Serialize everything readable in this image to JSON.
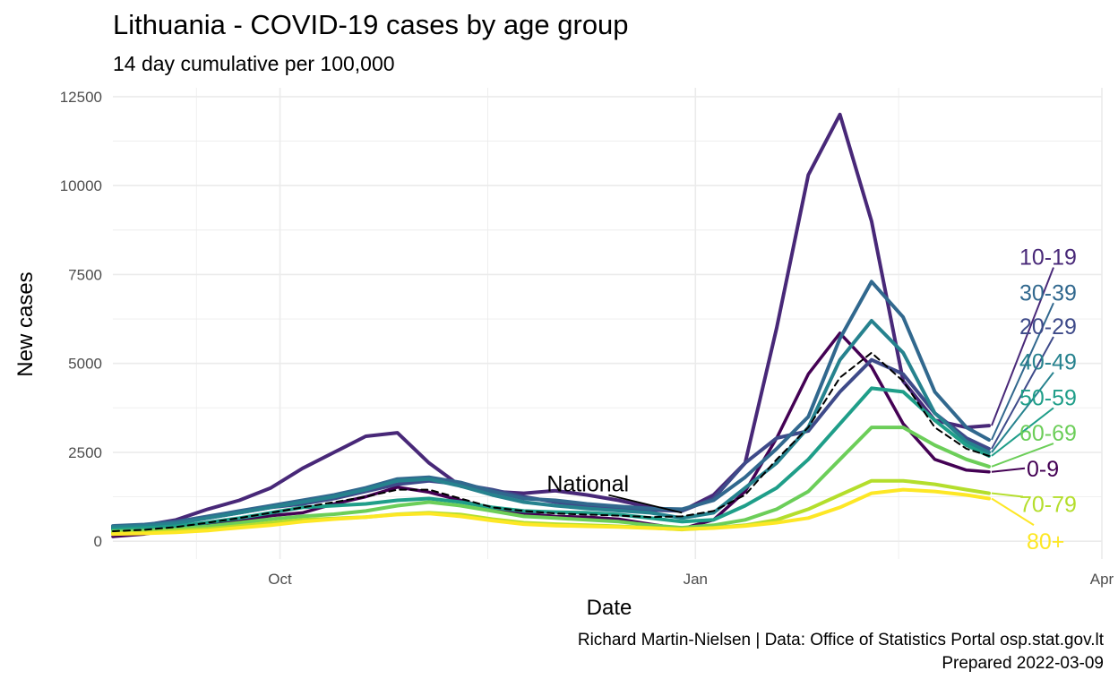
{
  "chart_data": {
    "type": "line",
    "title": "Lithuania - COVID-19 cases by age group",
    "subtitle": "14 day cumulative per 100,000",
    "xlabel": "Date",
    "ylabel": "New cases",
    "caption": [
      "Richard Martin-Nielsen | Data: Office of Statistics Portal osp.stat.gov.lt",
      "Prepared 2022-03-09"
    ],
    "x_ticks": [
      {
        "label": "Oct",
        "date": "2021-10-01"
      },
      {
        "label": "Jan",
        "date": "2022-01-01"
      },
      {
        "label": "Apr",
        "date": "2022-04-01"
      }
    ],
    "x_range": [
      "2021-08-25",
      "2022-04-01"
    ],
    "y_ticks": [
      0,
      2500,
      5000,
      7500,
      10000,
      12500
    ],
    "ylim": [
      -500,
      12750
    ],
    "grid": true,
    "legend": "direct labels at line ends",
    "x": [
      "2021-08-25",
      "2021-09-01",
      "2021-09-08",
      "2021-09-15",
      "2021-09-22",
      "2021-09-29",
      "2021-10-06",
      "2021-10-13",
      "2021-10-20",
      "2021-10-27",
      "2021-11-03",
      "2021-11-10",
      "2021-11-17",
      "2021-11-24",
      "2021-12-01",
      "2021-12-08",
      "2021-12-15",
      "2021-12-22",
      "2021-12-29",
      "2022-01-05",
      "2022-01-12",
      "2022-01-19",
      "2022-01-26",
      "2022-02-02",
      "2022-02-09",
      "2022-02-16",
      "2022-02-23",
      "2022-03-02",
      "2022-03-07"
    ],
    "series": [
      {
        "name": "0-9",
        "color": "#440154",
        "width": 3.5,
        "values": [
          130,
          200,
          330,
          450,
          560,
          720,
          800,
          1050,
          1250,
          1520,
          1380,
          1150,
          900,
          780,
          700,
          680,
          620,
          480,
          350,
          600,
          1400,
          2900,
          4700,
          5850,
          4900,
          3300,
          2300,
          2000,
          1950
        ]
      },
      {
        "name": "10-19",
        "color": "#482878",
        "width": 4,
        "values": [
          380,
          450,
          600,
          900,
          1150,
          1500,
          2050,
          2500,
          2950,
          3050,
          2200,
          1550,
          1400,
          1350,
          1420,
          1300,
          1150,
          950,
          850,
          1300,
          2200,
          6000,
          10300,
          12000,
          9000,
          4500,
          3400,
          3200,
          3250
        ]
      },
      {
        "name": "20-29",
        "color": "#3E4A89",
        "width": 4,
        "values": [
          380,
          430,
          520,
          650,
          800,
          950,
          1050,
          1200,
          1400,
          1600,
          1700,
          1600,
          1450,
          1250,
          1100,
          1000,
          920,
          880,
          850,
          1200,
          2200,
          2900,
          3100,
          4200,
          5100,
          4700,
          3600,
          2900,
          2600
        ]
      },
      {
        "name": "30-39",
        "color": "#31688E",
        "width": 4,
        "values": [
          430,
          470,
          550,
          700,
          850,
          1000,
          1150,
          1300,
          1500,
          1750,
          1800,
          1650,
          1400,
          1200,
          1150,
          1050,
          980,
          920,
          900,
          1150,
          1800,
          2600,
          3500,
          5700,
          7300,
          6300,
          4200,
          3200,
          2850
        ]
      },
      {
        "name": "40-49",
        "color": "#26828E",
        "width": 4,
        "values": [
          400,
          430,
          500,
          650,
          800,
          950,
          1100,
          1250,
          1450,
          1700,
          1750,
          1550,
          1300,
          1100,
          1000,
          920,
          860,
          800,
          650,
          800,
          1500,
          2200,
          3200,
          5100,
          6200,
          5300,
          3600,
          2800,
          2500
        ]
      },
      {
        "name": "50-59",
        "color": "#1F9E89",
        "width": 4,
        "values": [
          330,
          370,
          420,
          530,
          650,
          800,
          950,
          1000,
          1050,
          1150,
          1200,
          1100,
          950,
          850,
          820,
          800,
          750,
          650,
          550,
          600,
          1000,
          1500,
          2300,
          3300,
          4300,
          4200,
          3400,
          2700,
          2400
        ]
      },
      {
        "name": "60-69",
        "color": "#6CCE59",
        "width": 4,
        "values": [
          280,
          300,
          340,
          420,
          520,
          620,
          700,
          760,
          850,
          1000,
          1100,
          1000,
          850,
          700,
          650,
          600,
          550,
          450,
          380,
          450,
          600,
          900,
          1400,
          2300,
          3200,
          3200,
          2700,
          2300,
          2100
        ]
      },
      {
        "name": "70-79",
        "color": "#B4DE2C",
        "width": 4,
        "values": [
          230,
          250,
          300,
          350,
          430,
          520,
          600,
          640,
          680,
          760,
          800,
          750,
          620,
          520,
          480,
          450,
          420,
          380,
          330,
          380,
          450,
          600,
          900,
          1300,
          1700,
          1700,
          1600,
          1450,
          1350
        ]
      },
      {
        "name": "80+",
        "color": "#FDE725",
        "width": 4,
        "values": [
          200,
          220,
          250,
          300,
          380,
          450,
          550,
          620,
          680,
          750,
          780,
          700,
          580,
          480,
          440,
          420,
          400,
          370,
          340,
          370,
          430,
          520,
          650,
          950,
          1350,
          1450,
          1400,
          1300,
          1200
        ]
      },
      {
        "name": "National",
        "color": "#000000",
        "width": 2,
        "dash": true,
        "values": [
          280,
          320,
          400,
          520,
          650,
          800,
          950,
          1100,
          1250,
          1450,
          1450,
          1200,
          950,
          850,
          780,
          750,
          720,
          680,
          700,
          850,
          1300,
          2300,
          3200,
          4600,
          5300,
          4500,
          3200,
          2600,
          2400
        ]
      }
    ],
    "labels": [
      {
        "text": "10-19",
        "series": "10-19",
        "y": 8000
      },
      {
        "text": "30-39",
        "series": "30-39",
        "y": 7000
      },
      {
        "text": "20-29",
        "series": "20-29",
        "y": 6050
      },
      {
        "text": "40-49",
        "series": "40-49",
        "y": 5050
      },
      {
        "text": "50-59",
        "series": "50-59",
        "y": 4050
      },
      {
        "text": "60-69",
        "series": "60-69",
        "y": 3050
      },
      {
        "text": "0-9",
        "series": "0-9",
        "y": 2050
      },
      {
        "text": "70-79",
        "series": "70-79",
        "y": 1050
      },
      {
        "text": "80+",
        "series": "80+",
        "y": 0
      },
      {
        "text": "National",
        "series": "National",
        "y": 1600,
        "date": "2021-12-10"
      }
    ]
  }
}
